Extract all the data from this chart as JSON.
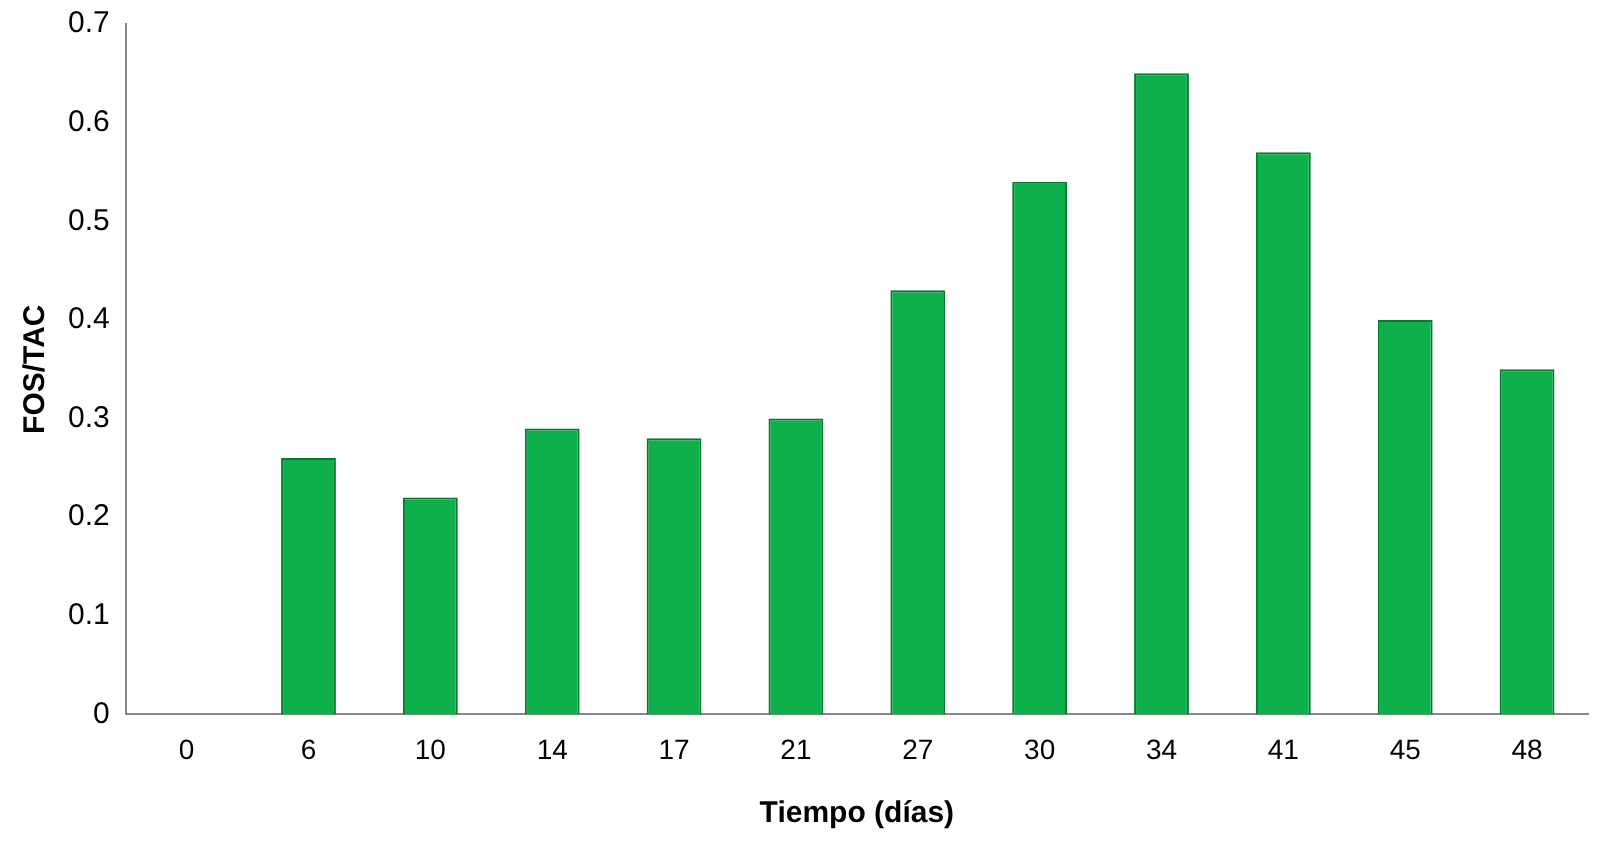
{
  "chart_data": {
    "type": "bar",
    "xlabel": "Tiempo (días)",
    "ylabel": "FOS/TAC",
    "categories": [
      "0",
      "6",
      "10",
      "14",
      "17",
      "21",
      "27",
      "30",
      "34",
      "41",
      "45",
      "48"
    ],
    "values": [
      0,
      0.26,
      0.22,
      0.29,
      0.28,
      0.3,
      0.43,
      0.54,
      0.65,
      0.57,
      0.4,
      0.35
    ],
    "color": "#0db04b",
    "ylim": [
      0,
      0.7
    ],
    "yticks": [
      0,
      0.1,
      0.2,
      0.3,
      0.4,
      0.5,
      0.6,
      0.7
    ],
    "grid": false,
    "legend": false
  }
}
